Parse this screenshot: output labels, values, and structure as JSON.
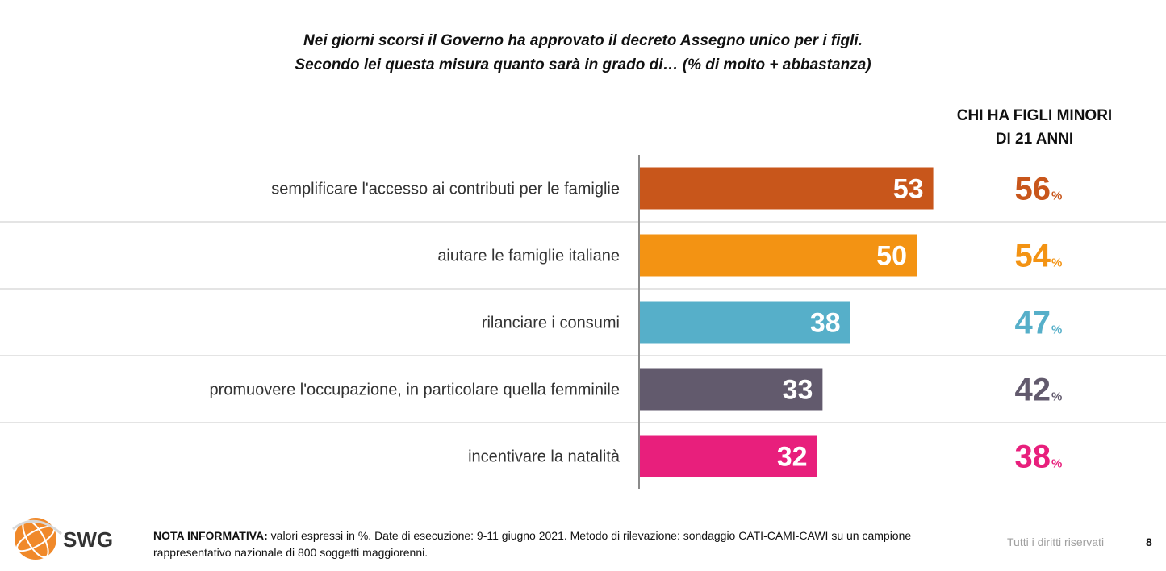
{
  "title": {
    "line1": "Nei giorni scorsi il Governo ha approvato il decreto Assegno unico per i figli.",
    "line2": "Secondo lei questa misura quanto sarà in grado di… (% di molto + abbastanza)"
  },
  "column_header": {
    "line1": "CHI HA FIGLI MINORI",
    "line2": "DI 21 ANNI"
  },
  "chart_data": {
    "type": "bar",
    "orientation": "horizontal",
    "categories": [
      "semplificare l'accesso ai contributi per le famiglie",
      "aiutare le famiglie italiane",
      "rilanciare i consumi",
      "promuovere l'occupazione, in particolare quella femminile",
      "incentivare la natalità"
    ],
    "values": [
      53,
      50,
      38,
      33,
      32
    ],
    "secondary_values": [
      56,
      54,
      47,
      42,
      38
    ],
    "secondary_unit": "%",
    "colors": [
      "#c8561b",
      "#f39313",
      "#56afc9",
      "#625a6d",
      "#e81f7c"
    ],
    "xlim": [
      0,
      100
    ],
    "grid": false
  },
  "footer": {
    "note_label": "NOTA INFORMATIVA:",
    "note_text": " valori espressi in %. Date di esecuzione: 9-11 giugno 2021. Metodo di rilevazione: sondaggio CATI-CAMI-CAWI su un campione rappresentativo nazionale di 800 soggetti maggiorenni.",
    "rights": "Tutti i diritti riservati",
    "page_number": "8"
  },
  "logo": {
    "text": "SWG",
    "icon": "globe-icon"
  }
}
